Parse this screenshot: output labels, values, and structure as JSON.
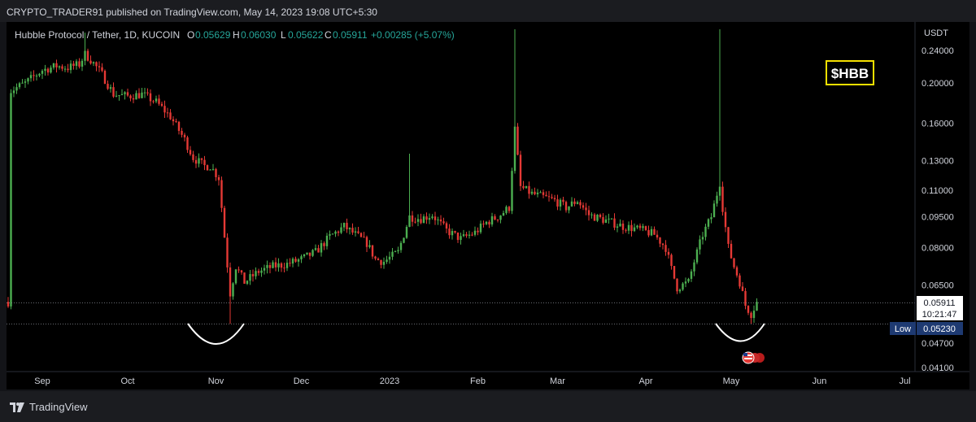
{
  "header": {
    "publish_line": "CRYPTO_TRADER91 published on TradingView.com, May 14, 2023 19:08 UTC+5:30"
  },
  "legend": {
    "symbol": "Hubble Protocol / Tether, 1D, KUCOIN",
    "o_label": "O",
    "o_value": "0.05629",
    "h_label": "H",
    "h_value": "0.06030",
    "l_label": "L",
    "l_value": "0.05622",
    "c_label": "C",
    "c_value": "0.05911",
    "change": "+0.00285 (+5.07%)"
  },
  "ticker_box": {
    "label": "$HBB",
    "color": "#f5e000"
  },
  "price_axis": {
    "unit": "USDT",
    "ticks": [
      "0.24000",
      "0.20000",
      "0.16000",
      "0.13000",
      "0.11000",
      "0.09500",
      "0.08000",
      "0.06500",
      "0.04700",
      "0.04100"
    ]
  },
  "time_axis": {
    "labels": [
      "Sep",
      "Oct",
      "Nov",
      "Dec",
      "2023",
      "Feb",
      "Mar",
      "Apr",
      "May",
      "Jun",
      "Jul"
    ]
  },
  "price_tag": {
    "value": "0.05911",
    "countdown": "10:21:47"
  },
  "low_tag": {
    "label": "Low",
    "value": "0.05230",
    "color": "#1e3a72"
  },
  "footer": {
    "brand": "TradingView"
  },
  "colors": {
    "up": "#26a69a",
    "down": "#ef5350",
    "up_body": "#4caf50",
    "down_body": "#e53935",
    "background": "#000000"
  },
  "chart_data": {
    "type": "candlestick",
    "scale": "log",
    "symbol": "Hubble Protocol / Tether",
    "interval": "1D",
    "exchange": "KUCOIN",
    "ylabel": "USDT",
    "ylim": [
      0.041,
      0.27
    ],
    "grid": false,
    "annotations": [
      {
        "type": "rounded-bottom",
        "date": "2022-11-10",
        "price": 0.0523
      },
      {
        "type": "rounded-bottom",
        "date": "2023-05-12",
        "price": 0.0523
      }
    ],
    "close_path": [
      [
        "2022-08-25",
        0.192
      ],
      [
        "2022-08-30",
        0.2
      ],
      [
        "2022-09-05",
        0.215
      ],
      [
        "2022-09-10",
        0.22
      ],
      [
        "2022-09-14",
        0.218
      ],
      [
        "2022-09-18",
        0.222
      ],
      [
        "2022-09-20",
        0.235
      ],
      [
        "2022-09-22",
        0.228
      ],
      [
        "2022-09-26",
        0.21
      ],
      [
        "2022-09-30",
        0.188
      ],
      [
        "2022-10-05",
        0.186
      ],
      [
        "2022-10-10",
        0.188
      ],
      [
        "2022-10-15",
        0.18
      ],
      [
        "2022-10-20",
        0.166
      ],
      [
        "2022-10-25",
        0.146
      ],
      [
        "2022-10-28",
        0.132
      ],
      [
        "2022-11-01",
        0.126
      ],
      [
        "2022-11-03",
        0.126
      ],
      [
        "2022-11-06",
        0.118
      ],
      [
        "2022-11-08",
        0.085
      ],
      [
        "2022-11-10",
        0.062
      ],
      [
        "2022-11-12",
        0.072
      ],
      [
        "2022-11-15",
        0.066
      ],
      [
        "2022-11-20",
        0.07
      ],
      [
        "2022-11-25",
        0.072
      ],
      [
        "2022-11-30",
        0.073
      ],
      [
        "2022-12-05",
        0.075
      ],
      [
        "2022-12-10",
        0.078
      ],
      [
        "2022-12-15",
        0.085
      ],
      [
        "2022-12-20",
        0.09
      ],
      [
        "2022-12-25",
        0.085
      ],
      [
        "2022-12-28",
        0.082
      ],
      [
        "2022-12-31",
        0.075
      ],
      [
        "2023-01-03",
        0.074
      ],
      [
        "2023-01-08",
        0.078
      ],
      [
        "2023-01-12",
        0.095
      ],
      [
        "2023-01-16",
        0.094
      ],
      [
        "2023-01-20",
        0.096
      ],
      [
        "2023-01-25",
        0.088
      ],
      [
        "2023-01-30",
        0.084
      ],
      [
        "2023-02-04",
        0.087
      ],
      [
        "2023-02-08",
        0.092
      ],
      [
        "2023-02-12",
        0.095
      ],
      [
        "2023-02-16",
        0.1
      ],
      [
        "2023-02-18",
        0.155
      ],
      [
        "2023-02-20",
        0.112
      ],
      [
        "2023-02-24",
        0.108
      ],
      [
        "2023-02-28",
        0.106
      ],
      [
        "2023-03-04",
        0.104
      ],
      [
        "2023-03-08",
        0.1
      ],
      [
        "2023-03-12",
        0.104
      ],
      [
        "2023-03-16",
        0.096
      ],
      [
        "2023-03-20",
        0.094
      ],
      [
        "2023-03-24",
        0.092
      ],
      [
        "2023-03-28",
        0.09
      ],
      [
        "2023-04-01",
        0.089
      ],
      [
        "2023-04-04",
        0.088
      ],
      [
        "2023-04-08",
        0.086
      ],
      [
        "2023-04-12",
        0.08
      ],
      [
        "2023-04-14",
        0.071
      ],
      [
        "2023-04-16",
        0.064
      ],
      [
        "2023-04-20",
        0.066
      ],
      [
        "2023-04-22",
        0.074
      ],
      [
        "2023-04-25",
        0.086
      ],
      [
        "2023-04-28",
        0.095
      ],
      [
        "2023-05-01",
        0.115
      ],
      [
        "2023-05-02",
        0.1
      ],
      [
        "2023-05-04",
        0.08
      ],
      [
        "2023-05-06",
        0.072
      ],
      [
        "2023-05-08",
        0.066
      ],
      [
        "2023-05-10",
        0.058
      ],
      [
        "2023-05-12",
        0.0553
      ],
      [
        "2023-05-14",
        0.05911
      ]
    ],
    "spikes": [
      {
        "date": "2022-09-20",
        "high": 0.265
      },
      {
        "date": "2023-01-12",
        "high": 0.135
      },
      {
        "date": "2023-02-18",
        "high": 0.27
      },
      {
        "date": "2023-05-01",
        "high": 0.27
      }
    ],
    "last": {
      "open": 0.05629,
      "high": 0.0603,
      "low": 0.05622,
      "close": 0.05911,
      "change": 0.00285,
      "change_pct": 5.07
    },
    "period_low": 0.0523
  }
}
